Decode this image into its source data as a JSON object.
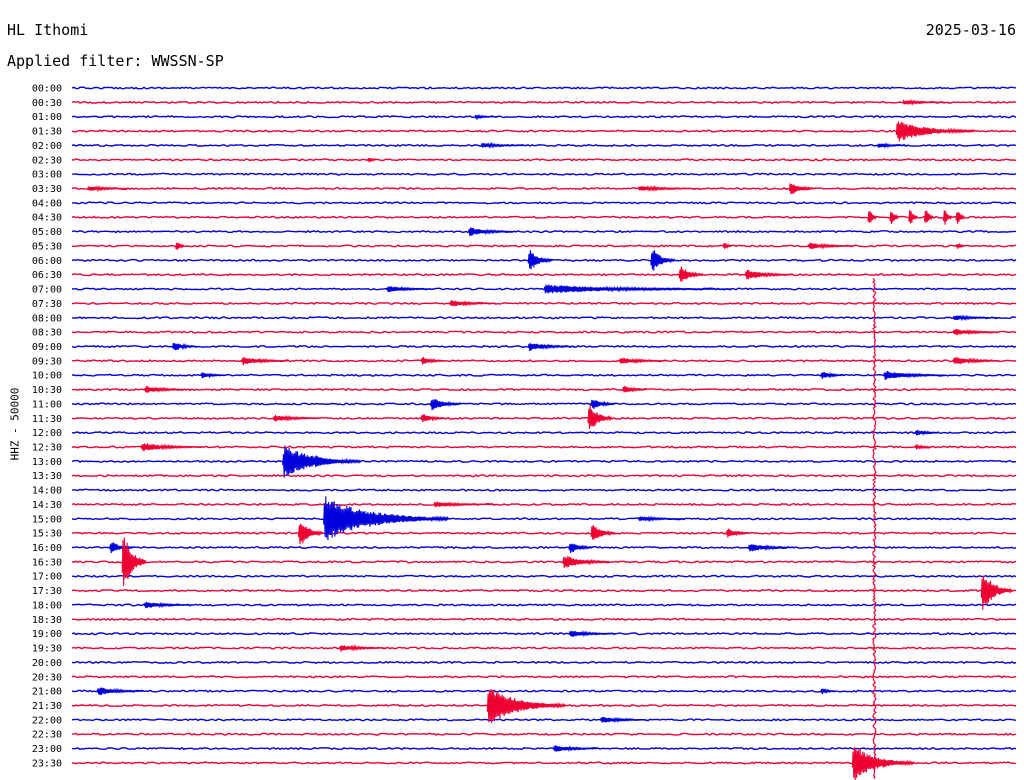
{
  "header": {
    "station": "HL Ithomi",
    "date": "2025-03-16",
    "filter_text": "Applied filter: WWSSN-SP"
  },
  "axis": {
    "y_label": "HHZ - 50000"
  },
  "colors": {
    "even_trace": "#0000dd",
    "odd_trace": "#ee0033",
    "background": "#ffffff"
  },
  "chart_data": {
    "type": "line",
    "title": "HL Ithomi",
    "ylabel": "HHZ - 50000",
    "xlabel": "",
    "grid": false,
    "row_labels": [
      "00:00",
      "00:30",
      "01:00",
      "01:30",
      "02:00",
      "02:30",
      "03:00",
      "03:30",
      "04:00",
      "04:30",
      "05:00",
      "05:30",
      "06:00",
      "06:30",
      "07:00",
      "07:30",
      "08:00",
      "08:30",
      "09:00",
      "09:30",
      "10:00",
      "10:30",
      "11:00",
      "11:30",
      "12:00",
      "12:30",
      "13:00",
      "13:30",
      "14:00",
      "14:30",
      "15:00",
      "15:30",
      "16:00",
      "16:30",
      "17:00",
      "17:30",
      "18:00",
      "18:30",
      "19:00",
      "19:30",
      "20:00",
      "20:30",
      "21:00",
      "21:30",
      "22:00",
      "22:30",
      "23:00",
      "23:30"
    ],
    "row_minutes": 30,
    "row_colors": [
      "blue",
      "red"
    ],
    "events": [
      {
        "row": 1,
        "minute": 26.4,
        "amp": 2.5,
        "dur": 1.5
      },
      {
        "row": 2,
        "minute": 12.8,
        "amp": 2.0,
        "dur": 0.8
      },
      {
        "row": 3,
        "minute": 26.2,
        "amp": 12,
        "dur": 2.5
      },
      {
        "row": 4,
        "minute": 13.0,
        "amp": 3,
        "dur": 1.5
      },
      {
        "row": 4,
        "minute": 25.6,
        "amp": 3,
        "dur": 1.0
      },
      {
        "row": 5,
        "minute": 9.4,
        "amp": 4,
        "dur": 0.3
      },
      {
        "row": 7,
        "minute": 0.5,
        "amp": 3,
        "dur": 1.5
      },
      {
        "row": 7,
        "minute": 18.0,
        "amp": 3,
        "dur": 2.0
      },
      {
        "row": 7,
        "minute": 22.8,
        "amp": 9,
        "dur": 0.8
      },
      {
        "row": 9,
        "minute": 25.3,
        "amp": 14,
        "dur": 0.3
      },
      {
        "row": 9,
        "minute": 26.0,
        "amp": 14,
        "dur": 0.3
      },
      {
        "row": 9,
        "minute": 26.6,
        "amp": 14,
        "dur": 0.3
      },
      {
        "row": 9,
        "minute": 27.1,
        "amp": 14,
        "dur": 0.3
      },
      {
        "row": 9,
        "minute": 27.7,
        "amp": 14,
        "dur": 0.3
      },
      {
        "row": 9,
        "minute": 28.1,
        "amp": 14,
        "dur": 0.3
      },
      {
        "row": 10,
        "minute": 12.6,
        "amp": 5,
        "dur": 1.5
      },
      {
        "row": 11,
        "minute": 3.3,
        "amp": 9,
        "dur": 0.3
      },
      {
        "row": 11,
        "minute": 20.7,
        "amp": 6,
        "dur": 0.3
      },
      {
        "row": 11,
        "minute": 23.4,
        "amp": 4,
        "dur": 1.5
      },
      {
        "row": 11,
        "minute": 28.1,
        "amp": 5,
        "dur": 0.3
      },
      {
        "row": 12,
        "minute": 14.5,
        "amp": 14,
        "dur": 0.8
      },
      {
        "row": 12,
        "minute": 18.4,
        "amp": 16,
        "dur": 0.8
      },
      {
        "row": 13,
        "minute": 19.3,
        "amp": 11,
        "dur": 0.8
      },
      {
        "row": 13,
        "minute": 21.4,
        "amp": 6,
        "dur": 1.5
      },
      {
        "row": 14,
        "minute": 10.0,
        "amp": 4,
        "dur": 1.5
      },
      {
        "row": 14,
        "minute": 15.0,
        "amp": 5,
        "dur": 6.0
      },
      {
        "row": 15,
        "minute": 12.0,
        "amp": 4,
        "dur": 1.5
      },
      {
        "row": 16,
        "minute": 28.0,
        "amp": 3,
        "dur": 1.5
      },
      {
        "row": 17,
        "minute": 28.0,
        "amp": 4,
        "dur": 1.5
      },
      {
        "row": 18,
        "minute": 3.2,
        "amp": 6,
        "dur": 0.8
      },
      {
        "row": 18,
        "minute": 14.5,
        "amp": 5,
        "dur": 1.5
      },
      {
        "row": 19,
        "minute": 5.4,
        "amp": 5,
        "dur": 1.5
      },
      {
        "row": 19,
        "minute": 11.1,
        "amp": 5,
        "dur": 0.8
      },
      {
        "row": 19,
        "minute": 17.4,
        "amp": 4,
        "dur": 1.5
      },
      {
        "row": 19,
        "minute": 28.0,
        "amp": 5,
        "dur": 1.5
      },
      {
        "row": 20,
        "minute": 4.1,
        "amp": 4,
        "dur": 0.8
      },
      {
        "row": 20,
        "minute": 23.8,
        "amp": 5,
        "dur": 0.8
      },
      {
        "row": 20,
        "minute": 25.8,
        "amp": 5,
        "dur": 2.0
      },
      {
        "row": 21,
        "minute": 2.3,
        "amp": 4,
        "dur": 1.5
      },
      {
        "row": 21,
        "minute": 17.5,
        "amp": 5,
        "dur": 0.8
      },
      {
        "row": 22,
        "minute": 11.4,
        "amp": 8,
        "dur": 1.0
      },
      {
        "row": 22,
        "minute": 16.5,
        "amp": 7,
        "dur": 0.8
      },
      {
        "row": 23,
        "minute": 6.4,
        "amp": 4,
        "dur": 1.5
      },
      {
        "row": 23,
        "minute": 11.1,
        "amp": 6,
        "dur": 0.8
      },
      {
        "row": 23,
        "minute": 16.4,
        "amp": 18,
        "dur": 0.8
      },
      {
        "row": 24,
        "minute": 26.8,
        "amp": 4,
        "dur": 0.8
      },
      {
        "row": 25,
        "minute": 2.2,
        "amp": 5,
        "dur": 2.0
      },
      {
        "row": 25,
        "minute": 26.8,
        "amp": 4,
        "dur": 0.5
      },
      {
        "row": 26,
        "minute": 6.7,
        "amp": 18,
        "dur": 2.5
      },
      {
        "row": 26,
        "minute": 7.7,
        "amp": 9,
        "dur": 0.8
      },
      {
        "row": 29,
        "minute": 11.5,
        "amp": 3,
        "dur": 2.0
      },
      {
        "row": 30,
        "minute": 8.0,
        "amp": 24,
        "dur": 4.0
      },
      {
        "row": 30,
        "minute": 18.0,
        "amp": 3,
        "dur": 1.5
      },
      {
        "row": 31,
        "minute": 7.2,
        "amp": 18,
        "dur": 0.8
      },
      {
        "row": 31,
        "minute": 16.5,
        "amp": 12,
        "dur": 0.8
      },
      {
        "row": 31,
        "minute": 20.8,
        "amp": 6,
        "dur": 0.8
      },
      {
        "row": 32,
        "minute": 1.2,
        "amp": 8,
        "dur": 0.8
      },
      {
        "row": 32,
        "minute": 15.8,
        "amp": 8,
        "dur": 0.8
      },
      {
        "row": 32,
        "minute": 21.5,
        "amp": 5,
        "dur": 1.5
      },
      {
        "row": 33,
        "minute": 1.6,
        "amp": 36,
        "dur": 0.8
      },
      {
        "row": 33,
        "minute": 15.6,
        "amp": 8,
        "dur": 1.5
      },
      {
        "row": 35,
        "minute": 28.9,
        "amp": 24,
        "dur": 1.0
      },
      {
        "row": 36,
        "minute": 2.3,
        "amp": 4,
        "dur": 1.5
      },
      {
        "row": 38,
        "minute": 15.8,
        "amp": 4,
        "dur": 1.5
      },
      {
        "row": 39,
        "minute": 8.5,
        "amp": 4,
        "dur": 1.5
      },
      {
        "row": 42,
        "minute": 0.8,
        "amp": 5,
        "dur": 1.5
      },
      {
        "row": 42,
        "minute": 23.8,
        "amp": 4,
        "dur": 0.5
      },
      {
        "row": 43,
        "minute": 13.2,
        "amp": 22,
        "dur": 2.5
      },
      {
        "row": 44,
        "minute": 16.8,
        "amp": 4,
        "dur": 1.5
      },
      {
        "row": 46,
        "minute": 15.3,
        "amp": 4,
        "dur": 1.5
      },
      {
        "row": 47,
        "minute": 24.8,
        "amp": 20,
        "dur": 2.0
      }
    ],
    "long_signal": {
      "start_row": 14,
      "end_row": 47,
      "minute": 25.5,
      "amp": 3
    }
  }
}
